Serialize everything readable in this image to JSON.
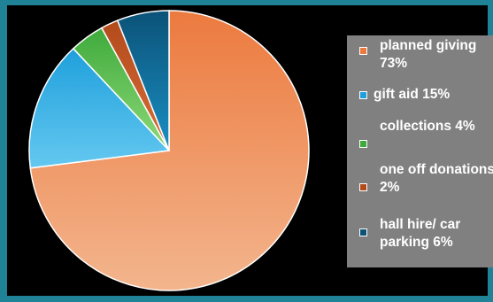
{
  "chart_data": {
    "type": "pie",
    "title": "",
    "slices": [
      {
        "label": "planned giving 73%",
        "value": 73,
        "color": "#ec7a3f",
        "color_light": "#f3b58d"
      },
      {
        "label": "gift aid 15%",
        "value": 15,
        "color": "#1fa0dc",
        "color_light": "#64c8f0"
      },
      {
        "label": "collections 4%",
        "value": 4,
        "color": "#3eaa3c",
        "color_light": "#8fd978"
      },
      {
        "label": "one off donations 2%",
        "value": 2,
        "color": "#b24a1c",
        "color_light": "#d96e3a"
      },
      {
        "label": "hall hire/ car parking 6%",
        "value": 6,
        "color": "#0b5278",
        "color_light": "#1a8fc3"
      }
    ],
    "legend_position": "right"
  }
}
